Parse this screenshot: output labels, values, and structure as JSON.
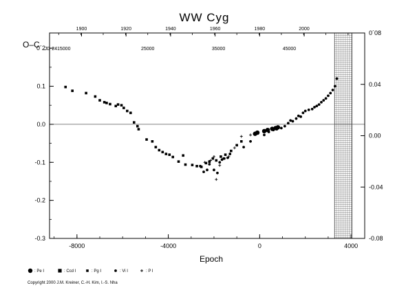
{
  "chart_data": {
    "type": "scatter",
    "title": "WW Cyg",
    "ylabel": "O–C",
    "xlabel": "Epoch",
    "xlim": [
      -9200,
      4600
    ],
    "ylim": [
      -0.3,
      0.24
    ],
    "right_ylim": [
      -0.08,
      0.08
    ],
    "x_ticks": [
      -8000,
      -4000,
      0,
      4000
    ],
    "x_tick_labels": [
      "-8000",
      "-4000",
      "0",
      "4000"
    ],
    "y_ticks": [
      -0.3,
      -0.2,
      -0.1,
      0.0,
      0.1,
      0.2
    ],
    "y_tick_labels": [
      "-0.3",
      "-0.2",
      "-0.1",
      "0.0",
      "0.1",
      "0´2"
    ],
    "right_ticks": [
      -0.08,
      -0.04,
      0.0,
      0.04,
      0.08
    ],
    "right_tick_labels": [
      "-0.08",
      "-0.04",
      "0.00",
      "0.04",
      "0´08"
    ],
    "top_axis": {
      "label_ticks": [
        {
          "x": -7800,
          "label": "1900"
        },
        {
          "x": -5850,
          "label": "1920"
        },
        {
          "x": -3900,
          "label": "1940"
        },
        {
          "x": -1950,
          "label": "1960"
        },
        {
          "x": 0,
          "label": "1980"
        },
        {
          "x": 1950,
          "label": "2000"
        }
      ],
      "jd_labels": [
        {
          "x": -8850,
          "label": "JD 2415000"
        },
        {
          "x": -4900,
          "label": "25000"
        },
        {
          "x": -1800,
          "label": "35000"
        },
        {
          "x": 1300,
          "label": "45000"
        }
      ]
    },
    "hatched_region": {
      "x_from": 3280,
      "x_to": 4050
    },
    "legend": [
      {
        "marker": "circle-large",
        "label": ": Pe I"
      },
      {
        "marker": "square-large",
        "label": ": Ccd I"
      },
      {
        "marker": "square-small",
        "label": ": Pg I"
      },
      {
        "marker": "circle-small",
        "label": ": Vi I"
      },
      {
        "marker": "plus",
        "label": ": P I"
      }
    ],
    "grid": false,
    "series": [
      {
        "marker": "square-small",
        "points": [
          [
            -8500,
            0.098
          ],
          [
            -8200,
            0.088
          ],
          [
            -7600,
            0.082
          ],
          [
            -7200,
            0.073
          ],
          [
            -7000,
            0.063
          ],
          [
            -6800,
            0.058
          ],
          [
            -6700,
            0.056
          ],
          [
            -6550,
            0.053
          ],
          [
            -6300,
            0.048
          ],
          [
            -6200,
            0.052
          ],
          [
            -6050,
            0.05
          ],
          [
            -5950,
            0.043
          ],
          [
            -5800,
            0.035
          ],
          [
            -5650,
            0.03
          ],
          [
            -5500,
            0.005
          ],
          [
            -5350,
            -0.005
          ],
          [
            -5300,
            -0.013
          ],
          [
            -4950,
            -0.04
          ],
          [
            -4700,
            -0.045
          ],
          [
            -4550,
            -0.06
          ],
          [
            -4400,
            -0.068
          ],
          [
            -4250,
            -0.073
          ],
          [
            -4100,
            -0.078
          ],
          [
            -3950,
            -0.08
          ],
          [
            -3800,
            -0.086
          ],
          [
            -3550,
            -0.098
          ],
          [
            -3350,
            -0.082
          ],
          [
            -3250,
            -0.106
          ],
          [
            -2950,
            -0.107
          ],
          [
            -2750,
            -0.11
          ],
          [
            -2550,
            -0.112
          ],
          [
            -2350,
            -0.102
          ],
          [
            -2200,
            -0.098
          ],
          [
            -2050,
            -0.09
          ],
          [
            -1900,
            -0.095
          ],
          [
            -1700,
            -0.085
          ],
          [
            -1500,
            -0.08
          ],
          [
            -1250,
            -0.07
          ],
          [
            -1000,
            -0.055
          ],
          [
            -800,
            -0.045
          ]
        ]
      },
      {
        "marker": "circle-small",
        "points": [
          [
            -2600,
            -0.11
          ],
          [
            -2450,
            -0.125
          ],
          [
            -2300,
            -0.12
          ],
          [
            -2200,
            -0.105
          ],
          [
            -2000,
            -0.12
          ],
          [
            -1850,
            -0.128
          ],
          [
            -1750,
            -0.1
          ],
          [
            -1650,
            -0.093
          ],
          [
            -1550,
            -0.09
          ],
          [
            -1400,
            -0.088
          ],
          [
            -1300,
            -0.078
          ],
          [
            -700,
            -0.06
          ],
          [
            -400,
            -0.045
          ],
          [
            200,
            -0.028
          ],
          [
            400,
            -0.02
          ],
          [
            600,
            -0.015
          ],
          [
            750,
            -0.013
          ],
          [
            950,
            -0.01
          ],
          [
            1100,
            -0.005
          ],
          [
            1250,
            0.003
          ],
          [
            1350,
            0.01
          ],
          [
            1450,
            0.008
          ],
          [
            1600,
            0.015
          ],
          [
            1700,
            0.022
          ],
          [
            1800,
            0.02
          ],
          [
            1900,
            0.03
          ],
          [
            2000,
            0.035
          ],
          [
            2150,
            0.038
          ],
          [
            2300,
            0.04
          ],
          [
            2400,
            0.045
          ],
          [
            2500,
            0.048
          ],
          [
            2600,
            0.052
          ],
          [
            2700,
            0.058
          ],
          [
            2800,
            0.063
          ],
          [
            2900,
            0.068
          ],
          [
            3000,
            0.075
          ],
          [
            3100,
            0.082
          ],
          [
            3200,
            0.09
          ],
          [
            3300,
            0.1
          ],
          [
            3380,
            0.12
          ]
        ]
      },
      {
        "marker": "circle-large",
        "points": [
          [
            -200,
            -0.025
          ],
          [
            -100,
            -0.022
          ],
          [
            200,
            -0.018
          ],
          [
            350,
            -0.015
          ],
          [
            550,
            -0.012
          ],
          [
            700,
            -0.01
          ],
          [
            800,
            -0.008
          ]
        ]
      },
      {
        "marker": "plus",
        "points": [
          [
            -2400,
            -0.1
          ],
          [
            -2150,
            -0.095
          ],
          [
            -2000,
            -0.085
          ],
          [
            -1900,
            -0.145
          ],
          [
            -1750,
            -0.108
          ],
          [
            -1600,
            -0.09
          ],
          [
            -1350,
            -0.085
          ],
          [
            -1100,
            -0.062
          ],
          [
            -800,
            -0.032
          ],
          [
            -400,
            -0.028
          ]
        ]
      }
    ]
  },
  "copyright": "Copyright 2000 J.M. Kreiner, C.-H. Kim, I.-S. Nha"
}
